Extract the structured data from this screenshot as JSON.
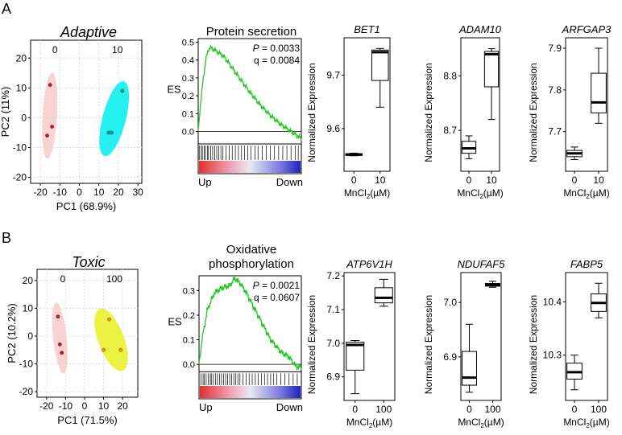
{
  "panel_labels": {
    "a": "A",
    "b": "B"
  },
  "chart_data": [
    {
      "type": "scatter",
      "id": "pca-adaptive",
      "title": "Adaptive",
      "xlabel": "PC1 (68.9%)",
      "ylabel": "PC2 (11%)",
      "xlim": [
        -25,
        32
      ],
      "ylim": [
        -22,
        26
      ],
      "xticks": [
        -20,
        -10,
        0,
        10,
        20,
        30
      ],
      "yticks": [
        -20,
        -10,
        0,
        10,
        20
      ],
      "groups": [
        {
          "label": "0",
          "color": "#f4a6a6",
          "ellipse_color": "#f8caca",
          "point_color": "#c8102e",
          "points": [
            [
              -15,
              11
            ],
            [
              -14,
              -3
            ],
            [
              -16.5,
              -6
            ]
          ]
        },
        {
          "label": "10",
          "color": "#00e5e5",
          "ellipse_color": "#00eeee",
          "point_color": "#00a0a0",
          "points": [
            [
              22,
              9
            ],
            [
              15,
              -5
            ],
            [
              16.5,
              -5
            ]
          ]
        }
      ]
    },
    {
      "type": "line",
      "id": "gsea-protein-secretion",
      "title": "Protein secretion",
      "ylabel": "ES",
      "ylim": [
        -0.07,
        0.52
      ],
      "yticks": [
        0.0,
        0.1,
        0.2,
        0.3,
        0.4,
        0.5
      ],
      "x_start_label": "Up",
      "x_end_label": "Down",
      "p_label": "P",
      "p_value": "= 0.0033",
      "q_value": "q = 0.0084",
      "line_color": "#22c722",
      "es_points": [
        [
          0,
          0
        ],
        [
          0.02,
          0.14
        ],
        [
          0.05,
          0.3
        ],
        [
          0.08,
          0.42
        ],
        [
          0.1,
          0.46
        ],
        [
          0.12,
          0.47
        ],
        [
          0.15,
          0.46
        ],
        [
          0.2,
          0.44
        ],
        [
          0.25,
          0.42
        ],
        [
          0.3,
          0.38
        ],
        [
          0.4,
          0.3
        ],
        [
          0.5,
          0.22
        ],
        [
          0.6,
          0.15
        ],
        [
          0.7,
          0.09
        ],
        [
          0.8,
          0.04
        ],
        [
          0.9,
          0.0
        ],
        [
          1.0,
          -0.04
        ]
      ],
      "hits": [
        0.01,
        0.03,
        0.04,
        0.06,
        0.07,
        0.09,
        0.1,
        0.12,
        0.14,
        0.16,
        0.18,
        0.2,
        0.22,
        0.24,
        0.27,
        0.3,
        0.33,
        0.36,
        0.39,
        0.42,
        0.45,
        0.48,
        0.51,
        0.55,
        0.58,
        0.62,
        0.66,
        0.7,
        0.74,
        0.78,
        0.82,
        0.86,
        0.9,
        0.94,
        0.97
      ]
    },
    {
      "type": "box",
      "id": "box-bet1",
      "title": "BET1",
      "ylabel": "Normalized Expression",
      "ylim": [
        9.52,
        9.77
      ],
      "yticks": [
        9.6,
        9.7
      ],
      "categories": [
        "0",
        "10"
      ],
      "xlabel": "MnCl",
      "xlabel_sub": "2",
      "xlabel_unit": "(µM)",
      "boxes": [
        {
          "min": 9.549,
          "q1": 9.55,
          "median": 9.551,
          "q3": 9.553,
          "max": 9.554
        },
        {
          "min": 9.64,
          "q1": 9.69,
          "median": 9.743,
          "q3": 9.747,
          "max": 9.75
        }
      ]
    },
    {
      "type": "box",
      "id": "box-adam10",
      "title": "ADAM10",
      "ylabel": "Normalized Expression",
      "ylim": [
        8.625,
        8.87
      ],
      "yticks": [
        8.7,
        8.8
      ],
      "categories": [
        "0",
        "10"
      ],
      "xlabel": "MnCl",
      "xlabel_sub": "2",
      "xlabel_unit": "(µM)",
      "boxes": [
        {
          "min": 8.648,
          "q1": 8.658,
          "median": 8.667,
          "q3": 8.68,
          "max": 8.69
        },
        {
          "min": 8.72,
          "q1": 8.78,
          "median": 8.84,
          "q3": 8.845,
          "max": 8.85
        }
      ]
    },
    {
      "type": "box",
      "id": "box-arfgap3",
      "title": "ARFGAP3",
      "ylabel": "Normalized Expression",
      "ylim": [
        7.605,
        7.925
      ],
      "yticks": [
        7.7,
        7.8,
        7.9
      ],
      "categories": [
        "0",
        "10"
      ],
      "xlabel": "MnCl",
      "xlabel_sub": "2",
      "xlabel_unit": "(µM)",
      "boxes": [
        {
          "min": 7.633,
          "q1": 7.64,
          "median": 7.648,
          "q3": 7.655,
          "max": 7.663
        },
        {
          "min": 7.72,
          "q1": 7.745,
          "median": 7.77,
          "q3": 7.84,
          "max": 7.9
        }
      ]
    },
    {
      "type": "scatter",
      "id": "pca-toxic",
      "title": "Toxic",
      "xlabel": "PC1 (71.5%)",
      "ylabel": "PC2 (10.2%)",
      "xlim": [
        -25,
        28
      ],
      "ylim": [
        -22,
        24
      ],
      "xticks": [
        -20,
        -10,
        0,
        10,
        20
      ],
      "yticks": [
        -20,
        -10,
        0,
        10,
        20
      ],
      "groups": [
        {
          "label": "0",
          "color": "#f4a6a6",
          "ellipse_color": "#f8caca",
          "point_color": "#c8102e",
          "points": [
            [
              -14,
              7
            ],
            [
              -13,
              -3
            ],
            [
              -12,
              -6
            ]
          ]
        },
        {
          "label": "100",
          "color": "#e5f000",
          "ellipse_color": "#e8f020",
          "point_color": "#e6a000",
          "points": [
            [
              13,
              6
            ],
            [
              10,
              -5
            ],
            [
              19,
              -5
            ]
          ]
        }
      ]
    },
    {
      "type": "line",
      "id": "gsea-oxphos",
      "title": "Oxidative",
      "title2": "phosphorylation",
      "ylabel": "ES",
      "ylim": [
        -0.03,
        0.36
      ],
      "yticks": [
        0.0,
        0.1,
        0.2,
        0.3
      ],
      "x_start_label": "Up",
      "x_end_label": "Down",
      "p_label": "P",
      "p_value": "= 0.0021",
      "q_value": "q = 0.0607",
      "line_color": "#22c722",
      "es_points": [
        [
          0,
          0
        ],
        [
          0.03,
          0.1
        ],
        [
          0.08,
          0.22
        ],
        [
          0.15,
          0.29
        ],
        [
          0.22,
          0.31
        ],
        [
          0.3,
          0.32
        ],
        [
          0.35,
          0.35
        ],
        [
          0.4,
          0.33
        ],
        [
          0.45,
          0.3
        ],
        [
          0.5,
          0.26
        ],
        [
          0.6,
          0.18
        ],
        [
          0.7,
          0.1
        ],
        [
          0.8,
          0.05
        ],
        [
          0.88,
          0.03
        ],
        [
          0.95,
          -0.01
        ],
        [
          1.0,
          -0.01
        ]
      ],
      "hits": [
        0.02,
        0.04,
        0.05,
        0.07,
        0.09,
        0.11,
        0.12,
        0.14,
        0.16,
        0.18,
        0.2,
        0.22,
        0.24,
        0.26,
        0.28,
        0.3,
        0.32,
        0.34,
        0.36,
        0.38,
        0.4,
        0.43,
        0.46,
        0.49,
        0.52,
        0.55,
        0.58,
        0.61,
        0.64,
        0.67,
        0.7,
        0.73,
        0.76,
        0.8,
        0.84,
        0.88,
        0.92,
        0.96
      ]
    },
    {
      "type": "box",
      "id": "box-atp6v1h",
      "title": "ATP6V1H",
      "ylabel": "Normalized Expression",
      "ylim": [
        6.83,
        7.21
      ],
      "yticks": [
        6.9,
        7.0,
        7.1,
        7.2
      ],
      "categories": [
        "0",
        "100"
      ],
      "xlabel": "MnCl",
      "xlabel_sub": "2",
      "xlabel_unit": "(µM)",
      "boxes": [
        {
          "min": 6.85,
          "q1": 6.92,
          "median": 6.995,
          "q3": 7.003,
          "max": 7.008
        },
        {
          "min": 7.11,
          "q1": 7.12,
          "median": 7.135,
          "q3": 7.165,
          "max": 7.19
        }
      ]
    },
    {
      "type": "box",
      "id": "box-ndufaf5",
      "title": "NDUFAF5",
      "ylabel": "Normalized Expression",
      "ylim": [
        6.82,
        7.055
      ],
      "yticks": [
        6.9,
        7.0
      ],
      "categories": [
        "0",
        "100"
      ],
      "xlabel": "MnCl",
      "xlabel_sub": "2",
      "xlabel_unit": "(µM)",
      "boxes": [
        {
          "min": 6.835,
          "q1": 6.848,
          "median": 6.862,
          "q3": 6.91,
          "max": 6.96
        },
        {
          "min": 7.028,
          "q1": 7.03,
          "median": 7.032,
          "q3": 7.035,
          "max": 7.039
        }
      ]
    },
    {
      "type": "box",
      "id": "box-fabp5",
      "title": "FABP5",
      "ylabel": "Normalized Expression",
      "ylim": [
        10.215,
        10.455
      ],
      "yticks": [
        10.3,
        10.4
      ],
      "categories": [
        "0",
        "100"
      ],
      "xlabel": "MnCl",
      "xlabel_sub": "2",
      "xlabel_unit": "(µM)",
      "boxes": [
        {
          "min": 10.235,
          "q1": 10.255,
          "median": 10.268,
          "q3": 10.285,
          "max": 10.3
        },
        {
          "min": 10.37,
          "q1": 10.382,
          "median": 10.398,
          "q3": 10.415,
          "max": 10.435
        }
      ]
    }
  ]
}
